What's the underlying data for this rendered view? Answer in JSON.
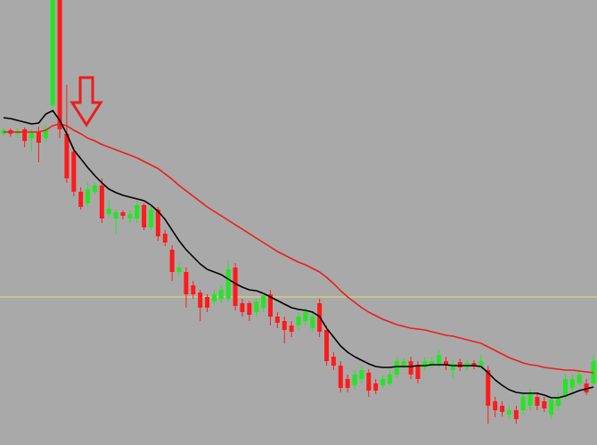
{
  "chart_data": {
    "type": "candlestick",
    "categories": [
      null,
      null,
      null,
      null,
      null,
      null,
      null,
      null,
      null,
      null,
      null,
      null,
      null,
      null,
      null,
      null,
      null,
      null,
      null,
      null,
      null,
      null,
      null,
      null,
      null,
      null,
      null,
      null,
      null,
      null,
      null,
      null,
      null,
      null,
      null,
      null,
      null,
      null,
      null,
      null,
      null,
      null,
      null,
      null,
      null,
      null,
      null,
      null,
      null,
      null,
      null,
      null,
      null,
      null,
      null,
      null,
      null,
      null,
      null,
      null,
      null,
      null,
      null,
      null,
      null,
      null,
      null,
      null,
      null,
      null,
      null,
      null,
      null,
      null,
      null,
      null,
      null,
      null,
      null,
      null,
      null,
      null,
      null,
      null,
      null
    ],
    "open": [
      349,
      353,
      349,
      354,
      344,
      351,
      344,
      381,
      499,
      349,
      329,
      284,
      271,
      284,
      291,
      259,
      254,
      261,
      254,
      254,
      269,
      244,
      264,
      237,
      219,
      194,
      194,
      179,
      171,
      166,
      161,
      164,
      164,
      199,
      159,
      159,
      149,
      154,
      169,
      144,
      139,
      134,
      134,
      139,
      131,
      159,
      129,
      99,
      89,
      74,
      67,
      74,
      81,
      69,
      67,
      69,
      79,
      89,
      94,
      89,
      87,
      89,
      91,
      94,
      84,
      93,
      87,
      92,
      89,
      84,
      49,
      44,
      34,
      39,
      39,
      44,
      54,
      49,
      34,
      44,
      54,
      64,
      69,
      69,
      69
    ],
    "high": [
      356,
      355,
      355,
      356,
      354,
      357,
      359,
      499,
      499,
      404,
      334,
      289,
      294,
      294,
      299,
      274,
      264,
      263,
      263,
      274,
      271,
      269,
      267,
      241,
      224,
      204,
      199,
      184,
      174,
      169,
      174,
      179,
      207,
      204,
      164,
      161,
      164,
      169,
      174,
      149,
      144,
      139,
      149,
      154,
      151,
      164,
      134,
      104,
      94,
      79,
      84,
      89,
      85,
      74,
      79,
      84,
      99,
      97,
      99,
      94,
      99,
      99,
      107,
      99,
      95,
      97,
      96,
      95,
      101,
      89,
      54,
      49,
      44,
      44,
      59,
      64,
      59,
      54,
      54,
      59,
      79,
      79,
      84,
      74,
      101
    ],
    "low": [
      347,
      346,
      344,
      334,
      329,
      317,
      339,
      378,
      344,
      294,
      279,
      264,
      267,
      281,
      249,
      256,
      237,
      253,
      249,
      249,
      241,
      241,
      229,
      223,
      184,
      189,
      154,
      164,
      139,
      149,
      157,
      159,
      161,
      151,
      144,
      139,
      144,
      149,
      134,
      131,
      114,
      121,
      129,
      134,
      127,
      121,
      89,
      84,
      59,
      59,
      62,
      69,
      54,
      57,
      63,
      66,
      76,
      86,
      74,
      69,
      83,
      86,
      87,
      84,
      74,
      83,
      84,
      85,
      85,
      24,
      31,
      32,
      29,
      24,
      34,
      39,
      39,
      37,
      29,
      39,
      51,
      59,
      66,
      56,
      67
    ],
    "close": [
      353,
      349,
      352,
      341,
      351,
      339,
      354,
      499,
      354,
      299,
      284,
      267,
      287,
      291,
      254,
      265,
      261,
      257,
      259,
      269,
      244,
      264,
      234,
      227,
      194,
      199,
      169,
      169,
      154,
      154,
      169,
      174,
      197,
      156,
      149,
      146,
      161,
      167,
      144,
      137,
      129,
      127,
      144,
      149,
      144,
      127,
      94,
      89,
      64,
      64,
      79,
      84,
      61,
      61,
      74,
      79,
      94,
      94,
      79,
      74,
      94,
      94,
      101,
      89,
      91,
      87,
      92,
      88,
      94,
      44,
      39,
      37,
      39,
      29,
      54,
      59,
      44,
      41,
      51,
      54,
      74,
      74,
      79,
      59,
      94
    ],
    "up_color": "#22e622",
    "down_color": "#ff1a1a",
    "lines": [
      {
        "color": "#ee1c1c",
        "values": [
          351,
          351,
          351,
          351,
          351,
          351,
          353,
          358,
          360,
          358,
          353,
          349,
          344,
          341,
          337,
          334,
          331,
          328,
          325,
          322,
          318,
          314,
          310,
          304,
          298,
          291,
          285,
          279,
          273,
          267,
          262,
          257,
          252,
          247,
          242,
          237,
          232,
          227,
          222,
          217,
          213,
          209,
          205,
          202,
          198,
          194,
          188,
          181,
          173,
          166,
          160,
          154,
          149,
          145,
          141,
          138,
          135,
          133,
          131,
          130,
          129,
          127,
          125,
          123,
          122,
          120,
          118,
          116,
          114,
          110,
          106,
          102,
          98,
          95,
          92,
          90,
          89,
          87,
          86,
          85,
          84,
          84,
          83,
          82,
          81
        ]
      },
      {
        "color": "#000000",
        "values": [
          367,
          366,
          364,
          362,
          360,
          361,
          371,
          375,
          364,
          349,
          331,
          321,
          311,
          302,
          294,
          287,
          283,
          280,
          278,
          276,
          274,
          269,
          262,
          253,
          241,
          229,
          219,
          211,
          203,
          197,
          194,
          191,
          186,
          181,
          177,
          174,
          173,
          170,
          166,
          162,
          158,
          154,
          152,
          151,
          149,
          144,
          131,
          121,
          111,
          104,
          99,
          95,
          91,
          88,
          87,
          87,
          88,
          88,
          88,
          89,
          89,
          90,
          90,
          90,
          89,
          89,
          89,
          89,
          88,
          81,
          73,
          67,
          62,
          59,
          58,
          58,
          58,
          56,
          53,
          53,
          55,
          58,
          61,
          63,
          65
        ]
      }
    ],
    "hline": {
      "value": 166,
      "color": "#e8e070"
    },
    "ylim": [
      0,
      499
    ]
  }
}
